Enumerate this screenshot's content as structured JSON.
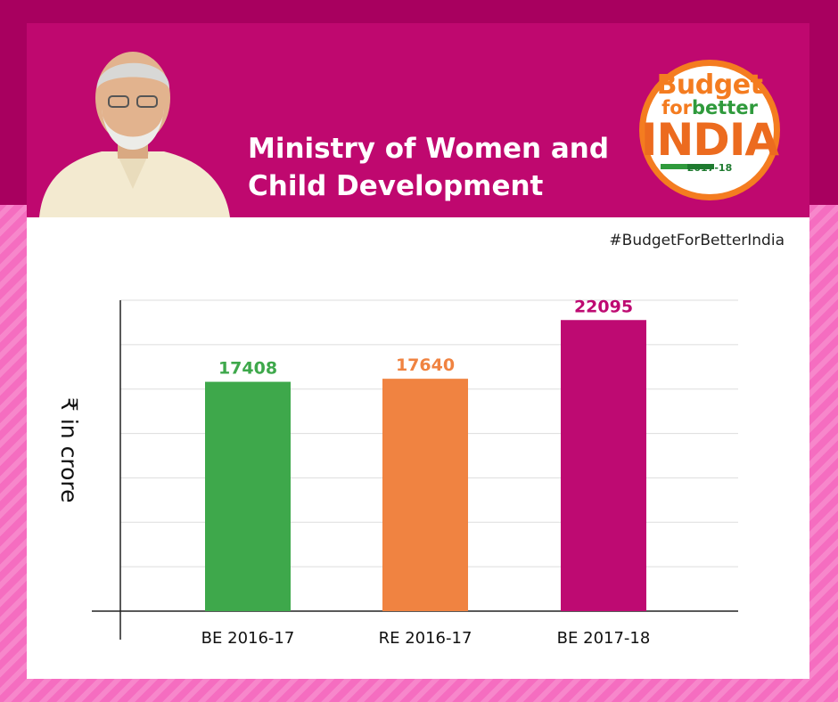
{
  "header": {
    "title_line1": "Ministry of Women and",
    "title_line2": "Child Development",
    "hashtag": "#BudgetForBetterIndia"
  },
  "badge": {
    "line1": "Budget",
    "for": "for",
    "better": "better",
    "line3": "INDIA",
    "year": "2017-18",
    "colors": {
      "orange": "#f47c20",
      "green": "#2f9a3c"
    }
  },
  "colors": {
    "header_bg": "#bf086f",
    "top_band": "#a8005f",
    "page_bg": "#f56dc0"
  },
  "chart_data": {
    "type": "bar",
    "categories": [
      "BE 2016-17",
      "RE 2016-17",
      "BE 2017-18"
    ],
    "values": [
      17408,
      17640,
      22095
    ],
    "colors": [
      "#3ea84b",
      "#f08341",
      "#be0a72"
    ],
    "ylabel": "₹ in crore",
    "xlabel": "",
    "ylim": [
      0,
      23600
    ],
    "grid": true,
    "legend": "none"
  }
}
